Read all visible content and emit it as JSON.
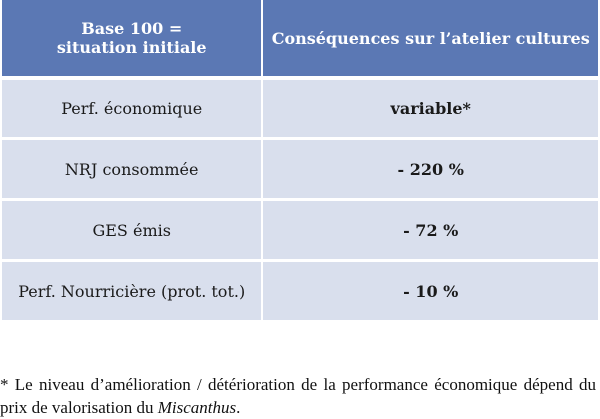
{
  "table": {
    "headers": [
      "Base 100 = situation initiale",
      "Conséquences sur l’atelier cultures"
    ],
    "rows": [
      {
        "label": "Perf. économique",
        "value": "variable*"
      },
      {
        "label": "NRJ consommée",
        "value": "- 220 %"
      },
      {
        "label": "GES émis",
        "value": "- 72 %"
      },
      {
        "label": "Perf. Nourricière (prot. tot.)",
        "value": "- 10 %"
      }
    ]
  },
  "footnote": {
    "text_before": "* Le niveau d’amélioration / détérioration de la performance économique dépend du prix de valorisation du ",
    "italic_term": "Miscanthus",
    "text_after": "."
  },
  "colors": {
    "header_bg": "#5b78b4",
    "row_bg": "#d9dfed",
    "header_text": "#ffffff"
  }
}
